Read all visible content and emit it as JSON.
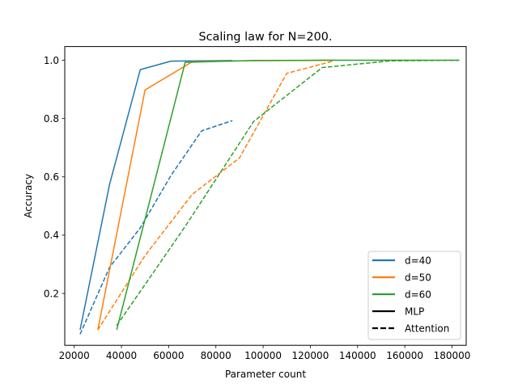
{
  "chart_data": {
    "type": "line",
    "title": "Scaling law for N=200.",
    "xlabel": "Parameter count",
    "ylabel": "Accuracy",
    "xlim": [
      16000,
      186000
    ],
    "ylim": [
      0.022,
      1.047
    ],
    "xticks": [
      20000,
      40000,
      60000,
      80000,
      100000,
      120000,
      140000,
      160000,
      180000
    ],
    "yticks": [
      0.2,
      0.4,
      0.6,
      0.8,
      1.0
    ],
    "ytick_labels": [
      "0.2",
      "0.4",
      "0.6",
      "0.8",
      "1.0"
    ],
    "grid": false,
    "legend_position": "lower-right",
    "legend": [
      {
        "label": "d=40",
        "color": "#1f77b4",
        "style": "solid"
      },
      {
        "label": "d=50",
        "color": "#ff7f0e",
        "style": "solid"
      },
      {
        "label": "d=60",
        "color": "#2ca02c",
        "style": "solid"
      },
      {
        "label": "MLP",
        "color": "#000000",
        "style": "solid"
      },
      {
        "label": "Attention",
        "color": "#000000",
        "style": "dashed"
      }
    ],
    "series": [
      {
        "d": "d=40",
        "model": "MLP",
        "color": "#1f77b4",
        "style": "solid",
        "x": [
          22500,
          35000,
          48000,
          61000,
          74000,
          87000
        ],
        "y": [
          0.075,
          0.575,
          0.968,
          0.997,
          0.998,
          0.999
        ]
      },
      {
        "d": "d=40",
        "model": "Attention",
        "color": "#1f77b4",
        "style": "dashed",
        "x": [
          22500,
          35000,
          48000,
          61000,
          74000,
          87000
        ],
        "y": [
          0.06,
          0.29,
          0.425,
          0.605,
          0.758,
          0.793
        ]
      },
      {
        "d": "d=50",
        "model": "MLP",
        "color": "#ff7f0e",
        "style": "solid",
        "x": [
          30000,
          50000,
          70000,
          90000,
          110000,
          130000
        ],
        "y": [
          0.075,
          0.898,
          0.995,
          0.998,
          0.999,
          1.0
        ]
      },
      {
        "d": "d=50",
        "model": "Attention",
        "color": "#ff7f0e",
        "style": "dashed",
        "x": [
          30000,
          50000,
          70000,
          90000,
          110000,
          130000
        ],
        "y": [
          0.075,
          0.33,
          0.54,
          0.665,
          0.955,
          0.998
        ]
      },
      {
        "d": "d=60",
        "model": "MLP",
        "color": "#2ca02c",
        "style": "solid",
        "x": [
          38000,
          67000,
          96000,
          125000,
          154000,
          183000
        ],
        "y": [
          0.075,
          0.993,
          0.999,
          1.0,
          1.0,
          1.0
        ]
      },
      {
        "d": "d=60",
        "model": "Attention",
        "color": "#2ca02c",
        "style": "dashed",
        "x": [
          38000,
          67000,
          96000,
          125000,
          154000,
          183000
        ],
        "y": [
          0.09,
          0.43,
          0.79,
          0.975,
          0.998,
          1.0
        ]
      }
    ]
  }
}
